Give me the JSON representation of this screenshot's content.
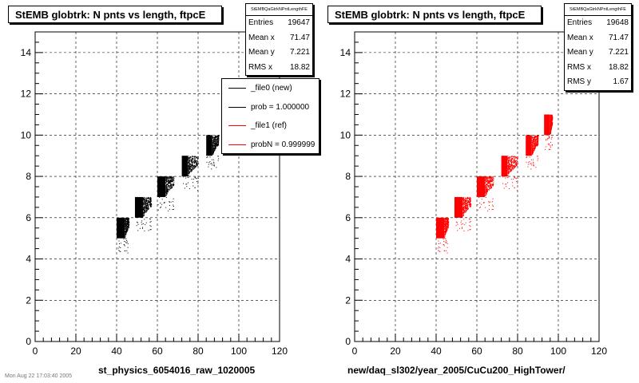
{
  "panels": [
    {
      "title": "StEMB globtrk: N pnts vs length, ftpcE",
      "stats": {
        "name": "StEMBQaGtrkNPntLengthFE",
        "rows": [
          {
            "label": "Entries",
            "value": "19647"
          },
          {
            "label": "Mean x",
            "value": "71.47"
          },
          {
            "label": "Mean y",
            "value": "7.221"
          },
          {
            "label": "RMS x",
            "value": "18.82"
          }
        ]
      },
      "legend": [
        {
          "text": "_file0 (new)",
          "color": "#000000"
        },
        {
          "text": "prob = 1.000000",
          "color": "#000000"
        },
        {
          "text": "_file1 (ref)",
          "color": "#ff0000"
        },
        {
          "text": "probN = 0.999999",
          "color": "#ff0000"
        }
      ],
      "xtitle": "st_physics_6054016_raw_1020005",
      "color": "#000000"
    },
    {
      "title": "StEMB globtrk: N pnts vs length, ftpcE",
      "stats": {
        "name": "StEMBQaGtrkNPntLengthFE",
        "rows": [
          {
            "label": "Entries",
            "value": "19648"
          },
          {
            "label": "Mean x",
            "value": "71.47"
          },
          {
            "label": "Mean y",
            "value": "7.221"
          },
          {
            "label": "RMS x",
            "value": "18.82"
          },
          {
            "label": "RMS y",
            "value": "1.67"
          }
        ]
      },
      "xtitle": "new/daq_sl302/year_2005/CuCu200_HighTower/",
      "color": "#ff0000"
    }
  ],
  "footer": "Mon Aug 22 17:03:40 2005",
  "chart_data": [
    {
      "type": "scatter",
      "title": "StEMB globtrk: N pnts vs length, ftpcE",
      "xlabel": "st_physics_6054016_raw_1020005",
      "ylabel": "",
      "xlim": [
        0,
        120
      ],
      "ylim": [
        0,
        15
      ],
      "x_ticks": [
        0,
        20,
        40,
        60,
        80,
        100,
        120
      ],
      "y_ticks": [
        0,
        2,
        4,
        6,
        8,
        10,
        12,
        14
      ],
      "grid": true,
      "series": [
        {
          "name": "_file0 (new)",
          "color": "#000000",
          "bands": [
            {
              "y": 6,
              "x_min": 40,
              "x_max": 46,
              "solid_to": 44
            },
            {
              "y": 7,
              "x_min": 49,
              "x_max": 57,
              "solid_to": 53
            },
            {
              "y": 8,
              "x_min": 60,
              "x_max": 68,
              "solid_to": 64
            },
            {
              "y": 9,
              "x_min": 72,
              "x_max": 80,
              "solid_to": 75
            },
            {
              "y": 10,
              "x_min": 84,
              "x_max": 90,
              "solid_to": 87
            },
            {
              "y": 11,
              "x_min": 93,
              "x_max": 97,
              "solid_to": 96
            }
          ]
        }
      ]
    },
    {
      "type": "scatter",
      "title": "StEMB globtrk: N pnts vs length, ftpcE",
      "xlabel": "new/daq_sl302/year_2005/CuCu200_HighTower/",
      "ylabel": "",
      "xlim": [
        0,
        120
      ],
      "ylim": [
        0,
        15
      ],
      "x_ticks": [
        0,
        20,
        40,
        60,
        80,
        100,
        120
      ],
      "y_ticks": [
        0,
        2,
        4,
        6,
        8,
        10,
        12,
        14
      ],
      "grid": true,
      "series": [
        {
          "name": "_file1 (ref)",
          "color": "#ff0000",
          "bands": [
            {
              "y": 6,
              "x_min": 40,
              "x_max": 46,
              "solid_to": 44
            },
            {
              "y": 7,
              "x_min": 49,
              "x_max": 57,
              "solid_to": 53
            },
            {
              "y": 8,
              "x_min": 60,
              "x_max": 68,
              "solid_to": 64
            },
            {
              "y": 9,
              "x_min": 72,
              "x_max": 80,
              "solid_to": 75
            },
            {
              "y": 10,
              "x_min": 84,
              "x_max": 90,
              "solid_to": 87
            },
            {
              "y": 11,
              "x_min": 93,
              "x_max": 97,
              "solid_to": 96
            }
          ]
        }
      ]
    }
  ]
}
